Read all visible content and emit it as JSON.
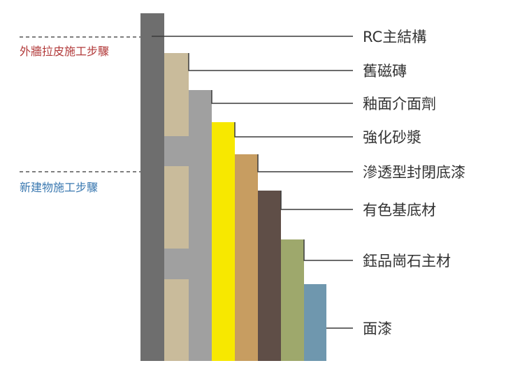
{
  "steps": {
    "exterior": {
      "label": "外牆拉皮施工步驟",
      "color": "#b23a3a"
    },
    "newbuild": {
      "label": "新建物施工步驟",
      "color": "#3a78b0"
    }
  },
  "layers": [
    {
      "label": "RC主結構",
      "color": "#6e6e6e"
    },
    {
      "label": "舊磁磚",
      "color": "#c9bb9b"
    },
    {
      "label": "釉面介面劑",
      "color": "#a0a0a0"
    },
    {
      "label": "強化砂漿",
      "color": "#f7e800"
    },
    {
      "label": "滲透型封閉底漆",
      "color": "#c79d61"
    },
    {
      "label": "有色基底材",
      "color": "#5f4e47"
    },
    {
      "label": "鈺品崗石主材",
      "color": "#9ea86c"
    },
    {
      "label": "面漆",
      "color": "#6f97ae"
    }
  ],
  "colors": {
    "leader": "#3a3a3a",
    "text": "#333333",
    "dash": "#555555"
  }
}
